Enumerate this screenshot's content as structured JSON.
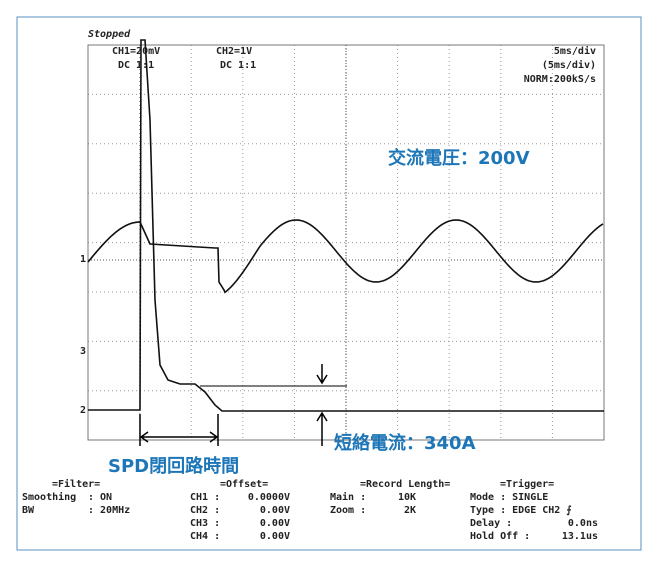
{
  "status": "Stopped",
  "channels": [
    {
      "label": "CH1=20mV",
      "coupling": "DC  1:1"
    },
    {
      "label": "CH2=1V",
      "coupling": "DC  1:1"
    }
  ],
  "timebase": [
    "5ms/div",
    "(5ms/div)",
    "NORM:200kS/s"
  ],
  "markers": [
    "1",
    "3",
    "2"
  ],
  "annotations": {
    "voltage": "交流電圧：200V",
    "current": "短絡電流：340A",
    "spd_time": "SPD閉回路時間"
  },
  "filter": {
    "title": "=Filter=",
    "rows": [
      [
        "Smoothing",
        ": ON"
      ],
      [
        "BW",
        ": 20MHz"
      ]
    ]
  },
  "offset": {
    "title": "=Offset=",
    "rows": [
      [
        "CH1 :",
        "0.0000V"
      ],
      [
        "CH2 :",
        "0.00V"
      ],
      [
        "CH3 :",
        "0.00V"
      ],
      [
        "CH4 :",
        "0.00V"
      ]
    ]
  },
  "record": {
    "title": "=Record  Length=",
    "rows": [
      [
        "Main :",
        "10K"
      ],
      [
        "Zoom :",
        "2K"
      ]
    ]
  },
  "trigger": {
    "title": "=Trigger=",
    "rows": [
      [
        "Mode : SINGLE",
        ""
      ],
      [
        "Type : EDGE CH2 ⨍",
        ""
      ],
      [
        "Delay :",
        "0.0ns"
      ],
      [
        "Hold Off :",
        "13.1us"
      ]
    ]
  }
}
